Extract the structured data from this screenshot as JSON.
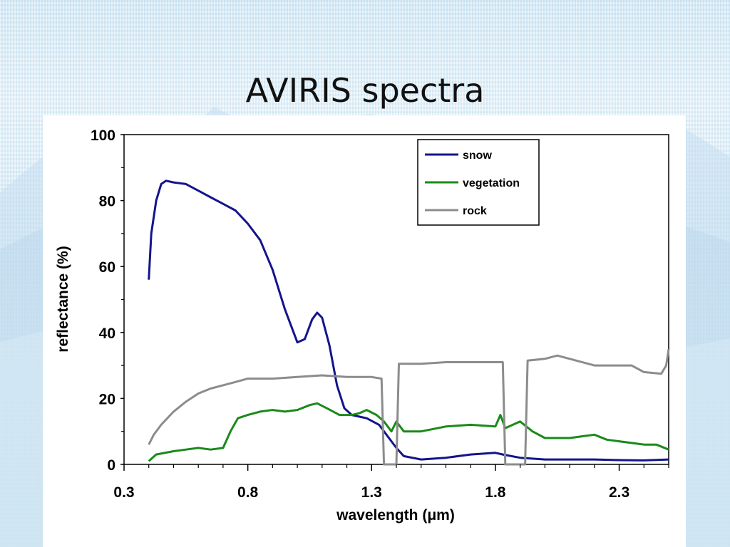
{
  "slide": {
    "title": "AVIRIS spectra"
  },
  "chart_data": {
    "type": "line",
    "title": "",
    "xlabel": "wavelength (μm)",
    "ylabel": "reflectance (%)",
    "xlim": [
      0.3,
      2.5
    ],
    "ylim": [
      0,
      100
    ],
    "x_ticks": [
      "0.3",
      "0.8",
      "1.3",
      "1.8",
      "2.3"
    ],
    "y_ticks": [
      "0",
      "20",
      "40",
      "60",
      "80",
      "100"
    ],
    "legend_position": "top-right",
    "series": [
      {
        "name": "snow",
        "color": "#14148c",
        "points": [
          [
            0.4,
            56
          ],
          [
            0.41,
            70
          ],
          [
            0.43,
            80
          ],
          [
            0.45,
            85
          ],
          [
            0.47,
            86
          ],
          [
            0.5,
            85.5
          ],
          [
            0.55,
            85
          ],
          [
            0.6,
            83
          ],
          [
            0.65,
            81
          ],
          [
            0.7,
            79
          ],
          [
            0.75,
            77
          ],
          [
            0.8,
            73
          ],
          [
            0.85,
            68
          ],
          [
            0.9,
            59
          ],
          [
            0.95,
            47
          ],
          [
            1.0,
            37
          ],
          [
            1.03,
            38
          ],
          [
            1.06,
            44
          ],
          [
            1.08,
            46
          ],
          [
            1.1,
            44.5
          ],
          [
            1.13,
            36
          ],
          [
            1.16,
            24
          ],
          [
            1.19,
            17
          ],
          [
            1.22,
            15
          ],
          [
            1.28,
            14
          ],
          [
            1.33,
            12
          ],
          [
            1.36,
            9
          ],
          [
            1.38,
            7
          ],
          [
            1.4,
            5
          ],
          [
            1.43,
            2.5
          ],
          [
            1.5,
            1.5
          ],
          [
            1.6,
            2
          ],
          [
            1.7,
            3
          ],
          [
            1.8,
            3.5
          ],
          [
            1.83,
            3
          ],
          [
            1.9,
            2
          ],
          [
            2.0,
            1.5
          ],
          [
            2.1,
            1.5
          ],
          [
            2.2,
            1.5
          ],
          [
            2.3,
            1.3
          ],
          [
            2.4,
            1.2
          ],
          [
            2.5,
            1.5
          ]
        ]
      },
      {
        "name": "vegetation",
        "color": "#1a8a1a",
        "points": [
          [
            0.4,
            1
          ],
          [
            0.43,
            3
          ],
          [
            0.5,
            4
          ],
          [
            0.55,
            4.5
          ],
          [
            0.6,
            5
          ],
          [
            0.65,
            4.5
          ],
          [
            0.7,
            5
          ],
          [
            0.73,
            10
          ],
          [
            0.76,
            14
          ],
          [
            0.8,
            15
          ],
          [
            0.85,
            16
          ],
          [
            0.9,
            16.5
          ],
          [
            0.95,
            16
          ],
          [
            1.0,
            16.5
          ],
          [
            1.05,
            18
          ],
          [
            1.08,
            18.5
          ],
          [
            1.12,
            17
          ],
          [
            1.17,
            15
          ],
          [
            1.22,
            15
          ],
          [
            1.25,
            15.5
          ],
          [
            1.28,
            16.5
          ],
          [
            1.32,
            15
          ],
          [
            1.35,
            13
          ],
          [
            1.38,
            10
          ],
          [
            1.4,
            13
          ],
          [
            1.43,
            10
          ],
          [
            1.5,
            10
          ],
          [
            1.6,
            11.5
          ],
          [
            1.7,
            12
          ],
          [
            1.8,
            11.5
          ],
          [
            1.82,
            15
          ],
          [
            1.84,
            11
          ],
          [
            1.9,
            13
          ],
          [
            1.95,
            10
          ],
          [
            2.0,
            8
          ],
          [
            2.1,
            8
          ],
          [
            2.15,
            8.5
          ],
          [
            2.2,
            9
          ],
          [
            2.25,
            7.5
          ],
          [
            2.3,
            7
          ],
          [
            2.4,
            6
          ],
          [
            2.45,
            6
          ],
          [
            2.5,
            4.5
          ]
        ]
      },
      {
        "name": "rock",
        "color": "#8c8c8c",
        "points": [
          [
            0.4,
            6
          ],
          [
            0.42,
            9
          ],
          [
            0.45,
            12
          ],
          [
            0.5,
            16
          ],
          [
            0.55,
            19
          ],
          [
            0.6,
            21.5
          ],
          [
            0.65,
            23
          ],
          [
            0.7,
            24
          ],
          [
            0.75,
            25
          ],
          [
            0.8,
            26
          ],
          [
            0.9,
            26
          ],
          [
            1.0,
            26.5
          ],
          [
            1.1,
            27
          ],
          [
            1.2,
            26.5
          ],
          [
            1.3,
            26.5
          ],
          [
            1.34,
            26
          ],
          [
            1.35,
            0
          ],
          [
            1.4,
            0
          ],
          [
            1.41,
            30.5
          ],
          [
            1.5,
            30.5
          ],
          [
            1.6,
            31
          ],
          [
            1.7,
            31
          ],
          [
            1.83,
            31
          ],
          [
            1.84,
            0
          ],
          [
            1.92,
            0
          ],
          [
            1.93,
            31.5
          ],
          [
            2.0,
            32
          ],
          [
            2.05,
            33
          ],
          [
            2.1,
            32
          ],
          [
            2.2,
            30
          ],
          [
            2.3,
            30
          ],
          [
            2.35,
            30
          ],
          [
            2.4,
            28
          ],
          [
            2.47,
            27.5
          ],
          [
            2.49,
            30
          ],
          [
            2.5,
            35
          ]
        ]
      }
    ]
  }
}
